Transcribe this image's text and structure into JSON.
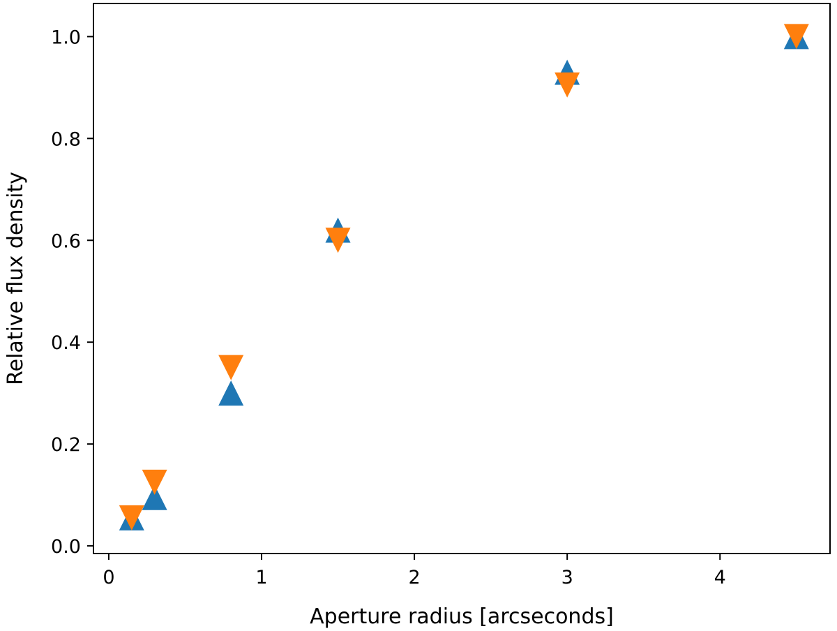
{
  "chart_data": {
    "type": "scatter",
    "title": "",
    "xlabel": "Aperture radius [arcseconds]",
    "ylabel": "Relative flux density",
    "xlim": [
      -0.1,
      4.72
    ],
    "ylim": [
      -0.015,
      1.065
    ],
    "grid": false,
    "xticks": [
      0,
      1,
      2,
      3,
      4
    ],
    "yticks": [
      0.0,
      0.2,
      0.4,
      0.6,
      0.8,
      1.0
    ],
    "xtick_labels": [
      "0",
      "1",
      "2",
      "3",
      "4"
    ],
    "ytick_labels": [
      "0.0",
      "0.2",
      "0.4",
      "0.6",
      "0.8",
      "1.0"
    ],
    "series": [
      {
        "marker": "triangle-up",
        "color": "#1f77b4",
        "x": [
          0.15,
          0.3,
          0.8,
          1.5,
          3.0,
          4.5
        ],
        "y": [
          0.055,
          0.095,
          0.3,
          0.62,
          0.93,
          1.0
        ]
      },
      {
        "marker": "triangle-down",
        "color": "#ff7f0e",
        "x": [
          0.15,
          0.3,
          0.8,
          1.5,
          3.0,
          4.5
        ],
        "y": [
          0.055,
          0.125,
          0.35,
          0.6,
          0.905,
          1.0
        ]
      }
    ]
  }
}
